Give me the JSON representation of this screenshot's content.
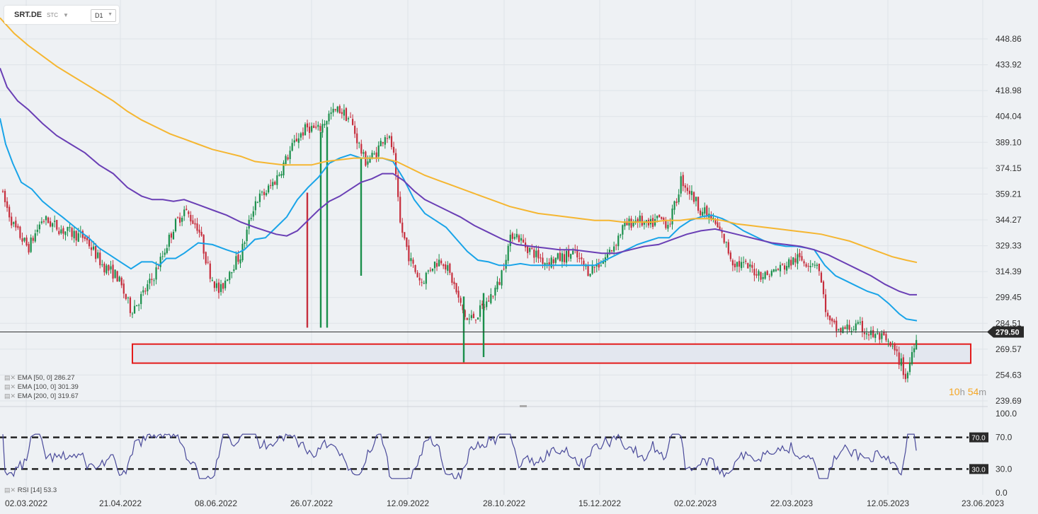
{
  "toolbar": {
    "symbol": "SRT.DE",
    "instrument_type": "STC",
    "timeframe": "D1"
  },
  "indicators": {
    "ema50": "EMA [50, 0] 286.27",
    "ema100": "EMA [100, 0] 301.39",
    "ema200": "EMA [200, 0] 319.67",
    "rsi": "RSI [14] 53.3"
  },
  "countdown": {
    "hours": "10",
    "h": "h",
    "minutes": "54",
    "m": "m"
  },
  "colors": {
    "up": "#1a8f4b",
    "down": "#c62e3d",
    "ema50": "#19a4e8",
    "ema100": "#6a3fb5",
    "ema200": "#f5b631",
    "rsi": "#4a4a9a",
    "zone": "#e31b1b"
  },
  "chart_data": {
    "type": "candlestick",
    "price_ylim": [
      239.69,
      463.8
    ],
    "price_ticks": [
      "448.86",
      "433.92",
      "418.98",
      "404.04",
      "389.10",
      "374.15",
      "359.21",
      "344.27",
      "329.33",
      "314.39",
      "299.45",
      "284.51",
      "269.57",
      "254.63",
      "239.69"
    ],
    "last_price": "279.50",
    "x_labels": [
      "02.03.2022",
      "21.04.2022",
      "08.06.2022",
      "26.07.2022",
      "12.09.2022",
      "28.10.2022",
      "15.12.2022",
      "02.02.2023",
      "22.03.2023",
      "12.05.2023",
      "23.06.2023"
    ],
    "support_zone": [
      261.5,
      272.5
    ],
    "ema": [
      {
        "name": "EMA 50",
        "color": "#19a4e8",
        "points": [
          [
            0,
            403
          ],
          [
            8,
            388
          ],
          [
            18,
            377
          ],
          [
            30,
            366
          ],
          [
            45,
            362
          ],
          [
            60,
            355
          ],
          [
            75,
            350
          ],
          [
            88,
            346
          ],
          [
            100,
            342
          ],
          [
            112,
            338
          ],
          [
            125,
            334
          ],
          [
            140,
            328
          ],
          [
            155,
            324
          ],
          [
            170,
            320
          ],
          [
            185,
            316
          ],
          [
            200,
            320
          ],
          [
            215,
            320
          ],
          [
            225,
            318
          ],
          [
            235,
            322
          ],
          [
            248,
            322
          ],
          [
            260,
            325
          ],
          [
            280,
            331
          ],
          [
            300,
            330
          ],
          [
            320,
            327
          ],
          [
            335,
            325
          ],
          [
            345,
            327
          ],
          [
            360,
            333
          ],
          [
            375,
            334
          ],
          [
            390,
            340
          ],
          [
            405,
            346
          ],
          [
            420,
            356
          ],
          [
            435,
            363
          ],
          [
            450,
            369
          ],
          [
            465,
            377
          ],
          [
            480,
            380
          ],
          [
            495,
            382
          ],
          [
            510,
            380
          ],
          [
            525,
            380
          ],
          [
            540,
            380
          ],
          [
            555,
            378
          ],
          [
            570,
            368
          ],
          [
            585,
            356
          ],
          [
            600,
            348
          ],
          [
            615,
            344
          ],
          [
            630,
            340
          ],
          [
            645,
            333
          ],
          [
            660,
            326
          ],
          [
            675,
            321
          ],
          [
            690,
            320
          ],
          [
            705,
            318
          ],
          [
            720,
            318
          ],
          [
            735,
            319
          ],
          [
            750,
            318
          ],
          [
            765,
            318
          ],
          [
            780,
            318
          ],
          [
            795,
            318
          ],
          [
            810,
            318
          ],
          [
            825,
            318
          ],
          [
            840,
            318
          ],
          [
            855,
            321
          ],
          [
            870,
            324
          ],
          [
            885,
            327
          ],
          [
            900,
            330
          ],
          [
            915,
            332
          ],
          [
            930,
            334
          ],
          [
            945,
            334
          ],
          [
            960,
            340
          ],
          [
            975,
            344
          ],
          [
            990,
            346
          ],
          [
            1005,
            347
          ],
          [
            1020,
            345
          ],
          [
            1035,
            342
          ],
          [
            1050,
            338
          ],
          [
            1065,
            335
          ],
          [
            1080,
            332
          ],
          [
            1095,
            330
          ],
          [
            1110,
            329
          ],
          [
            1125,
            329
          ],
          [
            1140,
            328
          ],
          [
            1150,
            327
          ],
          [
            1165,
            318
          ],
          [
            1180,
            312
          ],
          [
            1195,
            309
          ],
          [
            1210,
            306
          ],
          [
            1225,
            303
          ],
          [
            1240,
            301
          ],
          [
            1255,
            296
          ],
          [
            1270,
            290
          ],
          [
            1280,
            287
          ],
          [
            1295,
            286
          ]
        ]
      },
      {
        "name": "EMA 100",
        "color": "#6a3fb5",
        "points": [
          [
            0,
            432
          ],
          [
            10,
            421
          ],
          [
            25,
            413
          ],
          [
            40,
            408
          ],
          [
            60,
            400
          ],
          [
            80,
            393
          ],
          [
            100,
            388
          ],
          [
            120,
            383
          ],
          [
            140,
            376
          ],
          [
            160,
            371
          ],
          [
            180,
            363
          ],
          [
            200,
            358
          ],
          [
            215,
            356
          ],
          [
            230,
            356
          ],
          [
            245,
            355
          ],
          [
            260,
            356
          ],
          [
            280,
            353
          ],
          [
            300,
            350
          ],
          [
            320,
            347
          ],
          [
            340,
            343
          ],
          [
            360,
            340
          ],
          [
            375,
            338
          ],
          [
            390,
            336
          ],
          [
            405,
            335
          ],
          [
            420,
            338
          ],
          [
            435,
            344
          ],
          [
            450,
            350
          ],
          [
            465,
            355
          ],
          [
            480,
            358
          ],
          [
            495,
            362
          ],
          [
            510,
            366
          ],
          [
            525,
            368
          ],
          [
            540,
            371
          ],
          [
            555,
            371
          ],
          [
            570,
            367
          ],
          [
            585,
            361
          ],
          [
            600,
            356
          ],
          [
            615,
            353
          ],
          [
            630,
            350
          ],
          [
            650,
            346
          ],
          [
            670,
            341
          ],
          [
            690,
            337
          ],
          [
            710,
            333
          ],
          [
            730,
            330
          ],
          [
            750,
            329
          ],
          [
            770,
            328
          ],
          [
            790,
            327
          ],
          [
            810,
            327
          ],
          [
            830,
            326
          ],
          [
            850,
            325
          ],
          [
            870,
            325
          ],
          [
            890,
            327
          ],
          [
            910,
            329
          ],
          [
            930,
            330
          ],
          [
            950,
            333
          ],
          [
            970,
            336
          ],
          [
            990,
            338
          ],
          [
            1010,
            339
          ],
          [
            1030,
            337
          ],
          [
            1050,
            335
          ],
          [
            1070,
            333
          ],
          [
            1090,
            331
          ],
          [
            1110,
            330
          ],
          [
            1130,
            329
          ],
          [
            1150,
            327
          ],
          [
            1170,
            324
          ],
          [
            1190,
            320
          ],
          [
            1210,
            316
          ],
          [
            1230,
            312
          ],
          [
            1250,
            307
          ],
          [
            1270,
            303
          ],
          [
            1285,
            301
          ],
          [
            1295,
            301
          ]
        ]
      },
      {
        "name": "EMA 200",
        "color": "#f5b631",
        "points": [
          [
            0,
            461
          ],
          [
            20,
            452
          ],
          [
            40,
            445
          ],
          [
            60,
            439
          ],
          [
            80,
            433
          ],
          [
            100,
            428
          ],
          [
            120,
            423
          ],
          [
            140,
            418
          ],
          [
            160,
            413
          ],
          [
            180,
            407
          ],
          [
            200,
            402
          ],
          [
            220,
            398
          ],
          [
            240,
            394
          ],
          [
            260,
            391
          ],
          [
            280,
            388
          ],
          [
            300,
            385
          ],
          [
            320,
            383
          ],
          [
            340,
            381
          ],
          [
            360,
            378
          ],
          [
            380,
            377
          ],
          [
            400,
            376
          ],
          [
            420,
            376
          ],
          [
            440,
            376
          ],
          [
            460,
            378
          ],
          [
            480,
            379
          ],
          [
            500,
            380
          ],
          [
            520,
            380
          ],
          [
            540,
            380
          ],
          [
            560,
            378
          ],
          [
            580,
            374
          ],
          [
            600,
            370
          ],
          [
            620,
            367
          ],
          [
            640,
            364
          ],
          [
            660,
            361
          ],
          [
            680,
            358
          ],
          [
            700,
            355
          ],
          [
            720,
            352
          ],
          [
            740,
            350
          ],
          [
            760,
            348
          ],
          [
            780,
            347
          ],
          [
            800,
            346
          ],
          [
            820,
            345
          ],
          [
            840,
            344
          ],
          [
            860,
            344
          ],
          [
            880,
            343
          ],
          [
            900,
            343
          ],
          [
            920,
            343
          ],
          [
            940,
            344
          ],
          [
            960,
            344
          ],
          [
            980,
            345
          ],
          [
            1000,
            345
          ],
          [
            1020,
            344
          ],
          [
            1040,
            342
          ],
          [
            1060,
            341
          ],
          [
            1080,
            340
          ],
          [
            1100,
            339
          ],
          [
            1120,
            338
          ],
          [
            1140,
            337
          ],
          [
            1160,
            336
          ],
          [
            1180,
            334
          ],
          [
            1200,
            332
          ],
          [
            1220,
            329
          ],
          [
            1240,
            326
          ],
          [
            1260,
            323
          ],
          [
            1280,
            321
          ],
          [
            1295,
            319.7
          ]
        ]
      }
    ],
    "rsi": {
      "ylim": [
        0,
        100
      ],
      "ticks": [
        "100.0",
        "70.0",
        "30.0",
        "0.0"
      ],
      "overbought": "70.0",
      "oversold": "30.0",
      "last": 53.3
    }
  }
}
